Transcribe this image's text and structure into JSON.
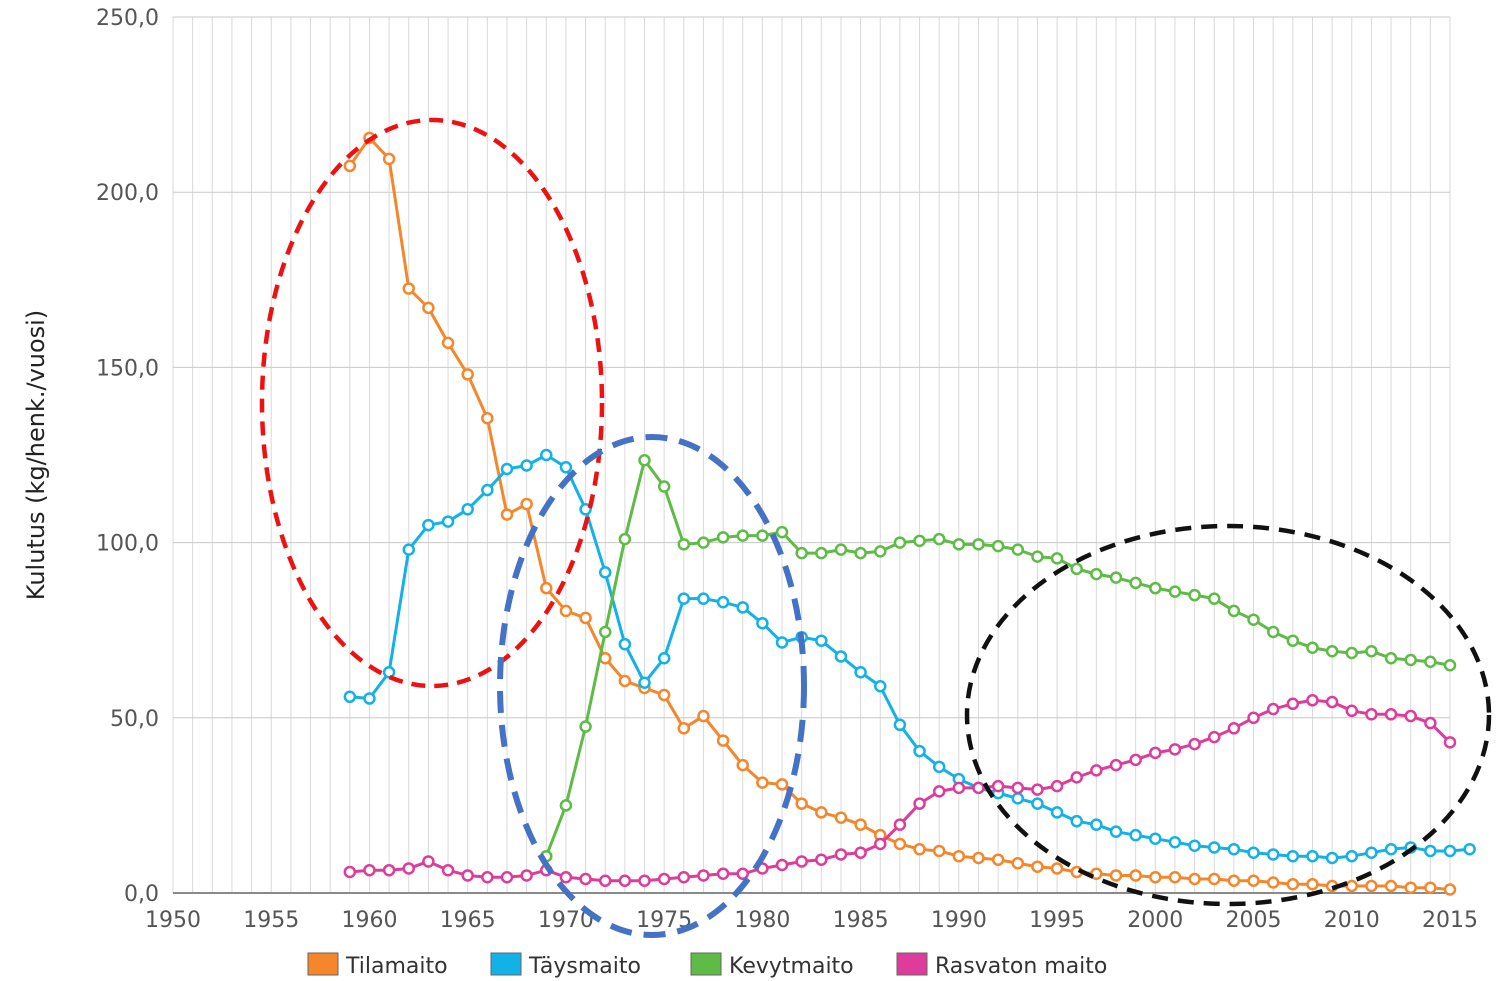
{
  "chart_data": {
    "type": "line",
    "ylabel": "Kulutus (kg/henk./vuosi)",
    "xlabel": "",
    "xlim": [
      1950,
      2015
    ],
    "ylim": [
      0,
      250
    ],
    "x_ticks": [
      "1950",
      "1955",
      "1960",
      "1965",
      "1970",
      "1975",
      "1980",
      "1985",
      "1990",
      "1995",
      "2000",
      "2005",
      "2010",
      "2015"
    ],
    "y_ticks": [
      "0,0",
      "50,0",
      "100,0",
      "150,0",
      "200,0",
      "250,0"
    ],
    "grid": true,
    "legend_position": "bottom",
    "series": [
      {
        "name": "Tilamaito",
        "color": "#f5862b",
        "start_year": 1959,
        "values": [
          207.5,
          215.5,
          209.5,
          172.5,
          167,
          157,
          148,
          135.5,
          108,
          111,
          87,
          80.5,
          78.5,
          67,
          60.5,
          58.5,
          56.5,
          47,
          50.5,
          43.5,
          36.5,
          31.5,
          31,
          25.5,
          23,
          21.5,
          19.5,
          16.5,
          14,
          12.5,
          12,
          10.5,
          10,
          9.5,
          8.5,
          7.5,
          7,
          6,
          5.5,
          5,
          5,
          4.5,
          4.5,
          4,
          4,
          3.5,
          3.5,
          3,
          2.5,
          2.5,
          2,
          2,
          2,
          2,
          1.5,
          1.5,
          1
        ]
      },
      {
        "name": "Täysmaito",
        "color": "#12b1e8",
        "start_year": 1959,
        "values": [
          56,
          55.5,
          63,
          98,
          105,
          106,
          109.5,
          115,
          121,
          122,
          125,
          121.5,
          109.5,
          91.5,
          71,
          60,
          67,
          84,
          84,
          83,
          81.5,
          77,
          71.5,
          73,
          72,
          67.5,
          63,
          59,
          48,
          40.5,
          36,
          32.5,
          30,
          28.5,
          27,
          25.5,
          23,
          20.5,
          19.5,
          17.5,
          16.5,
          15.5,
          14.5,
          13.5,
          13,
          12.5,
          11.5,
          11,
          10.5,
          10.5,
          10,
          10.5,
          11.5,
          12.5,
          13,
          12,
          12,
          12.5
        ]
      },
      {
        "name": "Kevytmaito",
        "color": "#5dbb46",
        "start_year": 1969,
        "values": [
          10.5,
          25,
          47.5,
          74.5,
          101,
          123.5,
          116,
          99.5,
          100,
          101.5,
          102,
          102,
          103,
          97,
          97,
          98,
          97,
          97.5,
          100,
          100.5,
          101,
          99.5,
          99.5,
          99,
          98,
          96,
          95.5,
          92.5,
          91,
          90,
          88.5,
          87,
          86,
          85,
          84,
          80.5,
          78,
          74.5,
          72,
          70,
          69,
          68.5,
          69,
          67,
          66.5,
          66,
          65
        ]
      },
      {
        "name": "Rasvaton maito",
        "color": "#de3c9a",
        "start_year": 1959,
        "values": [
          6,
          6.5,
          6.5,
          7,
          9,
          6.5,
          5,
          4.5,
          4.5,
          5,
          6.5,
          4.5,
          4,
          3.5,
          3.5,
          3.5,
          4,
          4.5,
          5,
          5.5,
          5.5,
          7,
          8,
          9,
          9.5,
          11,
          11.5,
          14,
          19.5,
          25.5,
          29,
          30,
          30,
          30.5,
          30,
          29.5,
          30.5,
          33,
          35,
          36.5,
          38,
          40,
          41,
          42.5,
          44.5,
          47,
          50,
          52.5,
          54,
          55,
          54.5,
          52,
          51,
          51,
          50.5,
          48.5,
          43
        ]
      }
    ],
    "annotations": [
      {
        "shape": "ellipse",
        "style": "dashed",
        "color": "#ee1111"
      },
      {
        "shape": "ellipse",
        "style": "dashed",
        "color": "#4472c4"
      },
      {
        "shape": "ellipse",
        "style": "dashed",
        "color": "#111111"
      }
    ]
  }
}
